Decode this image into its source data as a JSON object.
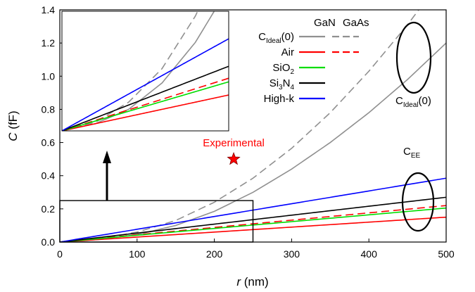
{
  "chart_data": {
    "type": "line",
    "xlabel": {
      "italic": "r",
      "rest": " (nm)"
    },
    "ylabel": {
      "italic": "C",
      "rest": " (fF)"
    },
    "xlim": [
      0,
      500
    ],
    "ylim": [
      0,
      1.4
    ],
    "xticks": [
      0,
      100,
      200,
      300,
      400,
      500
    ],
    "yticks": [
      0.0,
      0.2,
      0.4,
      0.6,
      0.8,
      1.0,
      1.2,
      1.4
    ],
    "xtick_labels": [
      "0",
      "100",
      "200",
      "300",
      "400",
      "500"
    ],
    "ytick_labels": [
      "0.0",
      "0.2",
      "0.4",
      "0.6",
      "0.8",
      "1.0",
      "1.2",
      "1.4"
    ],
    "grid": false,
    "legend": {
      "placement": "top-right",
      "column_headers": [
        "GaN",
        "GaAs"
      ],
      "rows": [
        {
          "label": "C",
          "sub": "Ideal",
          "suffix": "(0)",
          "color": "#909090",
          "gan": true,
          "gaas": true
        },
        {
          "label": "Air",
          "sub": "",
          "suffix": "",
          "color": "#ff0000",
          "gan": true,
          "gaas": true
        },
        {
          "label": "SiO",
          "sub": "2",
          "suffix": "",
          "color": "#00dd00",
          "gan": true,
          "gaas": false
        },
        {
          "label": "Si",
          "sub": "3",
          "suffix": "N",
          "sub2": "4",
          "color": "#000000",
          "gan": true,
          "gaas": false
        },
        {
          "label": "High-k",
          "sub": "",
          "suffix": "",
          "color": "#0000ff",
          "gan": true,
          "gaas": false
        }
      ]
    },
    "series": [
      {
        "material": "GaN",
        "kind": "C_Ideal(0)",
        "color": "#909090",
        "dash": "solid",
        "x": [
          0,
          50,
          100,
          150,
          200,
          250,
          300,
          350,
          400,
          450,
          500
        ],
        "y": [
          0,
          0.015,
          0.045,
          0.1,
          0.185,
          0.3,
          0.44,
          0.6,
          0.78,
          0.98,
          1.2
        ]
      },
      {
        "material": "GaAs",
        "kind": "C_Ideal(0)",
        "color": "#909090",
        "dash": "dashed",
        "x": [
          0,
          50,
          100,
          150,
          200,
          250,
          300,
          350,
          400,
          450,
          500
        ],
        "y": [
          0,
          0.018,
          0.06,
          0.13,
          0.24,
          0.385,
          0.565,
          0.78,
          1.03,
          1.31,
          1.62
        ]
      },
      {
        "material": "GaN",
        "kind": "Air",
        "color": "#ff0000",
        "dash": "solid",
        "x": [
          0,
          500
        ],
        "y": [
          0,
          0.15
        ]
      },
      {
        "material": "GaAs",
        "kind": "Air",
        "color": "#ff0000",
        "dash": "dashed",
        "x": [
          0,
          500
        ],
        "y": [
          0,
          0.22
        ]
      },
      {
        "material": "GaN",
        "kind": "SiO2",
        "color": "#00dd00",
        "dash": "solid",
        "x": [
          0,
          500
        ],
        "y": [
          0,
          0.205
        ]
      },
      {
        "material": "GaN",
        "kind": "Si3N4",
        "color": "#000000",
        "dash": "solid",
        "x": [
          0,
          500
        ],
        "y": [
          0,
          0.27
        ]
      },
      {
        "material": "GaN",
        "kind": "High-k",
        "color": "#0000ff",
        "dash": "solid",
        "x": [
          0,
          500
        ],
        "y": [
          0,
          0.385
        ]
      }
    ],
    "points": [
      {
        "label": "Experimental",
        "x": 225,
        "y": 0.5,
        "color": "#ff0000",
        "marker": "star"
      }
    ],
    "annotations": [
      {
        "label": "C",
        "sub": "Ideal",
        "suffix": "(0)"
      },
      {
        "label": "C",
        "sub": "EE",
        "suffix": ""
      }
    ],
    "inset_region": {
      "xlim": [
        0,
        250
      ],
      "ylim": [
        0,
        0.25
      ]
    }
  }
}
